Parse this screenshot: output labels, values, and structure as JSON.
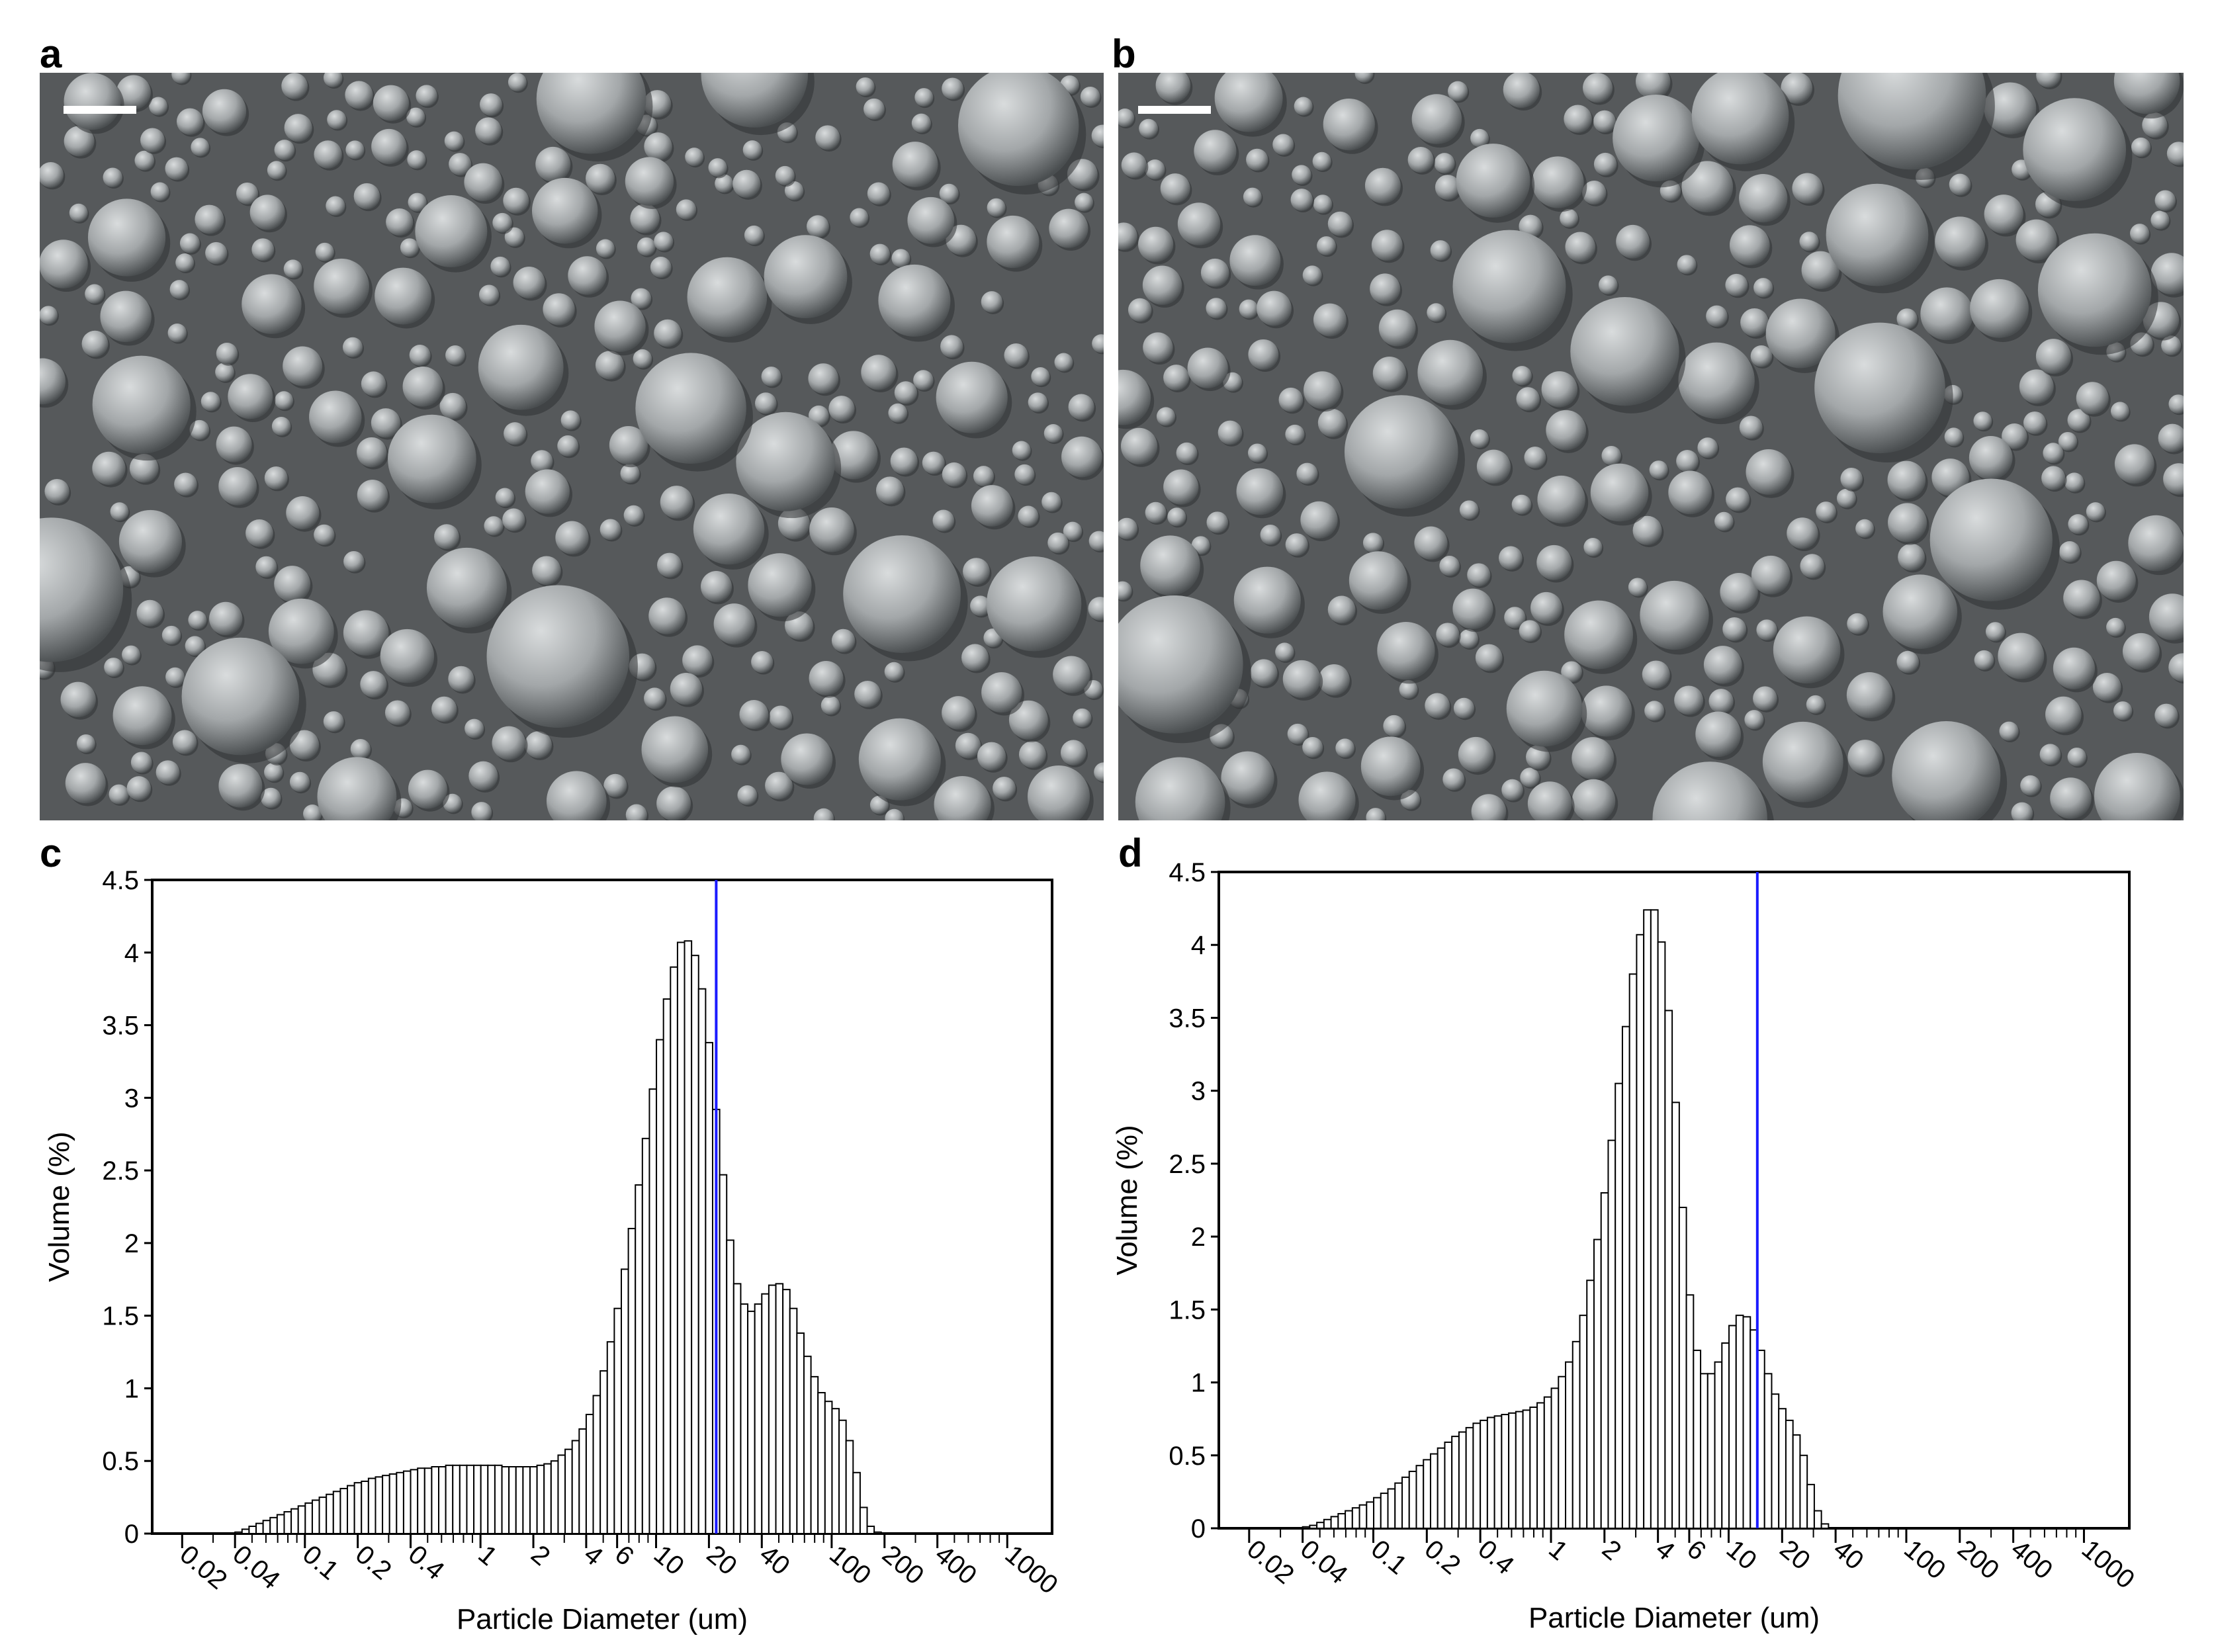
{
  "panels": {
    "a": "a",
    "b": "b",
    "c": "c",
    "d": "d"
  },
  "images": {
    "a": {
      "kind": "sem-micrograph",
      "tone": "#555a5c"
    },
    "b": {
      "kind": "sem-micrograph",
      "tone": "#555a5c"
    }
  },
  "colors": {
    "bars": "#000000",
    "bar_fill": "#ffffff",
    "marker_line": "#1a1aff"
  },
  "chart_data": [
    {
      "type": "bar",
      "panel": "c",
      "xlabel": "Particle Diameter (um)",
      "ylabel": "Volume (%)",
      "x_scale": "log",
      "xlim": [
        0.0135,
        1800
      ],
      "ylim": [
        0,
        4.5
      ],
      "yticks": [
        0,
        0.5,
        1,
        1.5,
        2,
        2.5,
        3,
        3.5,
        4,
        4.5
      ],
      "ytick_labels": [
        "0",
        "0.5",
        "1",
        "1.5",
        "2",
        "2.5",
        "3",
        "3.5",
        "4",
        "4.5"
      ],
      "xtick_labels": [
        "0.02",
        "0.04",
        "0.1",
        "0.2",
        "0.4",
        "1",
        "2",
        "4",
        "6",
        "10",
        "20",
        "40",
        "100",
        "200",
        "400",
        "1000"
      ],
      "xticks": [
        0.02,
        0.04,
        0.1,
        0.2,
        0.4,
        1,
        2,
        4,
        6,
        10,
        20,
        40,
        100,
        200,
        400,
        1000
      ],
      "bins_log_spacing_decades": 0.04,
      "bin_start": 0.04,
      "values": [
        0.01,
        0.03,
        0.05,
        0.07,
        0.09,
        0.11,
        0.13,
        0.15,
        0.17,
        0.19,
        0.21,
        0.23,
        0.25,
        0.27,
        0.29,
        0.31,
        0.33,
        0.35,
        0.36,
        0.38,
        0.39,
        0.4,
        0.41,
        0.42,
        0.43,
        0.44,
        0.45,
        0.45,
        0.46,
        0.46,
        0.47,
        0.47,
        0.47,
        0.47,
        0.47,
        0.47,
        0.47,
        0.47,
        0.46,
        0.46,
        0.46,
        0.46,
        0.46,
        0.47,
        0.48,
        0.5,
        0.54,
        0.58,
        0.64,
        0.72,
        0.82,
        0.95,
        1.12,
        1.32,
        1.55,
        1.82,
        2.1,
        2.4,
        2.72,
        3.06,
        3.4,
        3.68,
        3.9,
        4.07,
        4.08,
        3.98,
        3.75,
        3.38,
        2.92,
        2.47,
        2.02,
        1.72,
        1.58,
        1.53,
        1.58,
        1.65,
        1.71,
        1.72,
        1.68,
        1.55,
        1.38,
        1.22,
        1.08,
        0.97,
        0.91,
        0.86,
        0.78,
        0.64,
        0.42,
        0.18,
        0.05,
        0.01
      ],
      "marker_line_x": 22
    },
    {
      "type": "bar",
      "panel": "d",
      "xlabel": "Particle Diameter (um)",
      "ylabel": "Volume (%)",
      "x_scale": "log",
      "xlim": [
        0.0135,
        1800
      ],
      "ylim": [
        0,
        4.5
      ],
      "yticks": [
        0,
        0.5,
        1,
        1.5,
        2,
        2.5,
        3,
        3.5,
        4,
        4.5
      ],
      "ytick_labels": [
        "0",
        "0.5",
        "1",
        "1.5",
        "2",
        "2.5",
        "3",
        "3.5",
        "4",
        "4.5"
      ],
      "xtick_labels": [
        "0.02",
        "0.04",
        "0.1",
        "0.2",
        "0.4",
        "1",
        "2",
        "4",
        "6",
        "10",
        "20",
        "40",
        "100",
        "200",
        "400",
        "1000"
      ],
      "xticks": [
        0.02,
        0.04,
        0.1,
        0.2,
        0.4,
        1,
        2,
        4,
        6,
        10,
        20,
        40,
        100,
        200,
        400,
        1000
      ],
      "bins_log_spacing_decades": 0.04,
      "bin_start": 0.04,
      "values": [
        0.01,
        0.02,
        0.04,
        0.06,
        0.08,
        0.1,
        0.12,
        0.14,
        0.16,
        0.18,
        0.21,
        0.24,
        0.27,
        0.31,
        0.35,
        0.39,
        0.43,
        0.47,
        0.51,
        0.55,
        0.59,
        0.63,
        0.66,
        0.69,
        0.72,
        0.74,
        0.76,
        0.77,
        0.78,
        0.79,
        0.8,
        0.81,
        0.83,
        0.86,
        0.9,
        0.96,
        1.04,
        1.14,
        1.28,
        1.46,
        1.7,
        1.98,
        2.3,
        2.66,
        3.05,
        3.44,
        3.8,
        4.07,
        4.24,
        4.24,
        4.02,
        3.55,
        2.92,
        2.2,
        1.6,
        1.22,
        1.06,
        1.06,
        1.14,
        1.27,
        1.39,
        1.46,
        1.45,
        1.36,
        1.22,
        1.06,
        0.92,
        0.82,
        0.74,
        0.64,
        0.5,
        0.3,
        0.12,
        0.03
      ],
      "marker_line_x": 14.5
    }
  ]
}
